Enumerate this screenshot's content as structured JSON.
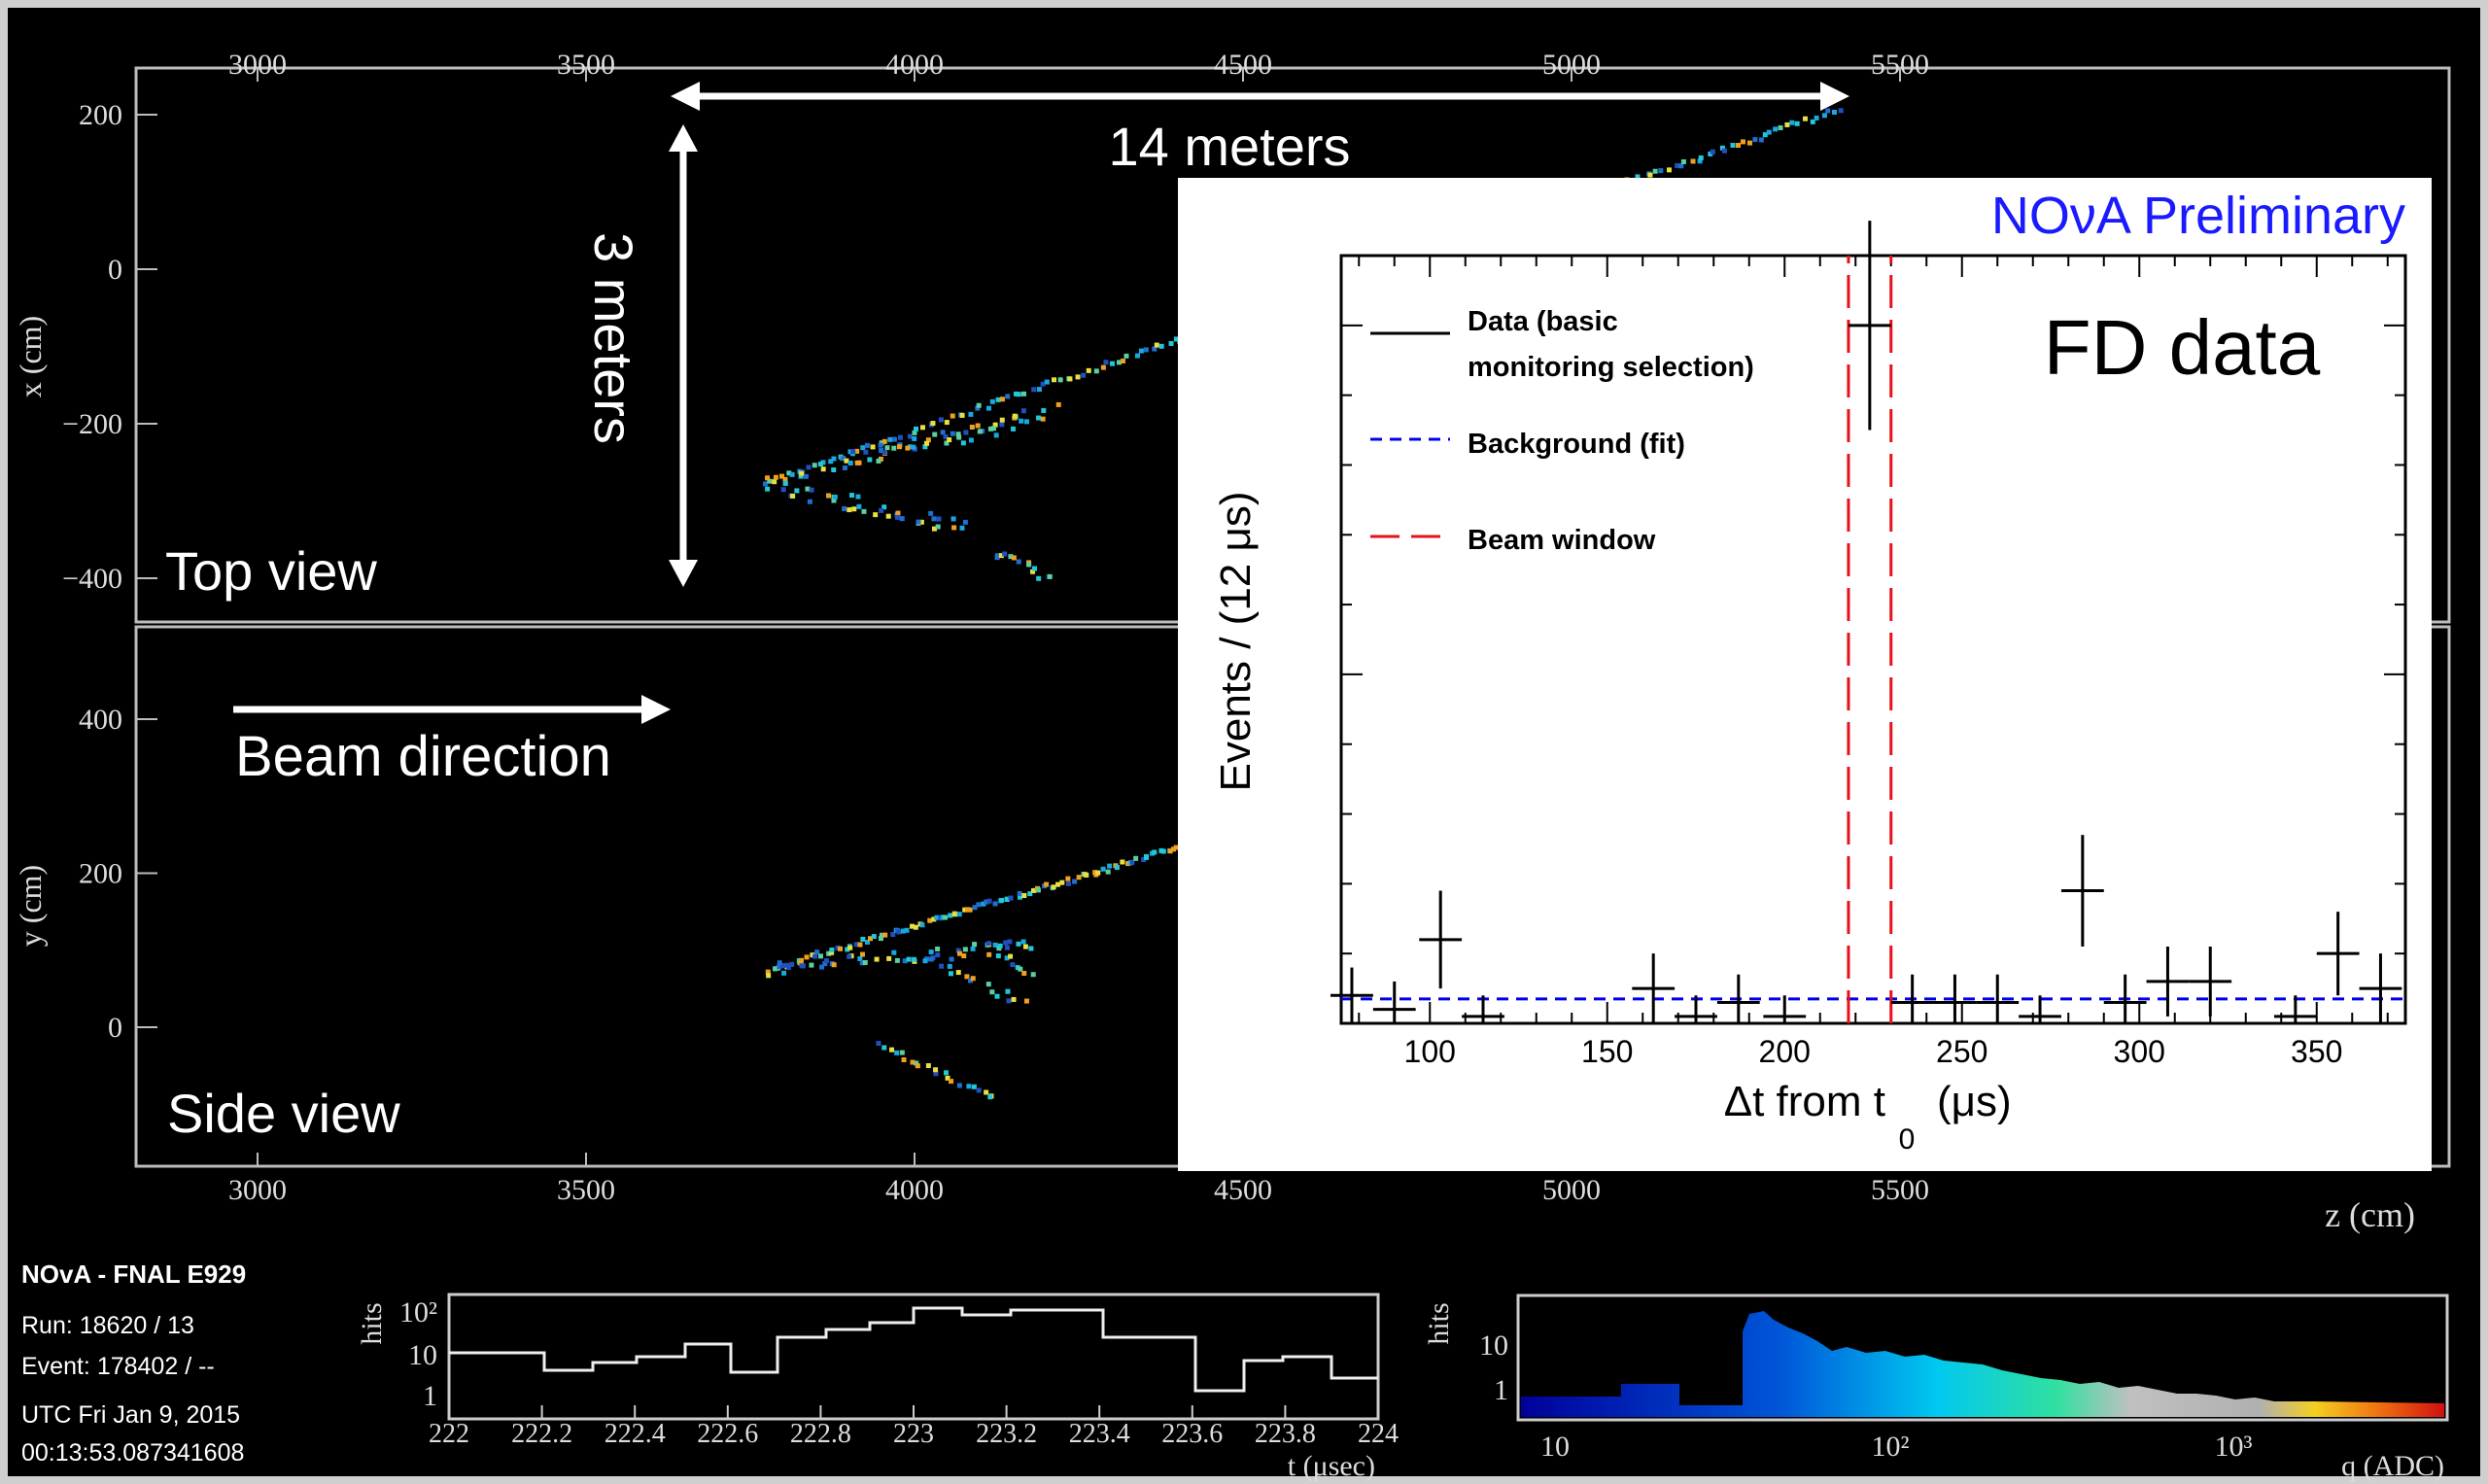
{
  "event_display": {
    "top_view": {
      "label": "Top view",
      "y_axis_label": "x (cm)",
      "y_ticks": [
        "200",
        "0",
        "−200",
        "−400"
      ],
      "y_tick_values": [
        200,
        0,
        -200,
        -400
      ]
    },
    "side_view": {
      "label": "Side view",
      "y_axis_label": "y (cm)",
      "y_ticks": [
        "400",
        "200",
        "0"
      ],
      "y_tick_values": [
        400,
        200,
        0
      ]
    },
    "z_ticks": [
      "3000",
      "3500",
      "4000",
      "4500",
      "5000",
      "5500"
    ],
    "z_tick_values": [
      3000,
      3500,
      4000,
      4500,
      5000,
      5500
    ],
    "z_axis_label": "z (cm)",
    "annotations": {
      "length": "14 meters",
      "height": "3 meters",
      "beam": "Beam direction"
    }
  },
  "info": {
    "experiment": "NOvA - FNAL E929",
    "run": "Run:  18620 / 13",
    "event": "Event: 178402 / --",
    "date": "UTC Fri Jan 9, 2015",
    "time": "00:13:53.087341608"
  },
  "time_hist": {
    "ylabel": "hits",
    "y_ticks": [
      "10²",
      "10",
      "1"
    ],
    "x_ticks": [
      "222",
      "222.2",
      "222.4",
      "222.6",
      "222.8",
      "223",
      "223.2",
      "223.4",
      "223.6",
      "223.8",
      "224"
    ],
    "xlabel": "t (μsec)"
  },
  "charge_hist": {
    "ylabel": "hits",
    "y_ticks": [
      "10",
      "1"
    ],
    "x_ticks": [
      "10",
      "10²",
      "10³"
    ],
    "xlabel": "q (ADC)"
  },
  "inset": {
    "banner": "NOνA Preliminary",
    "subtitle": "FD data",
    "ylabel": "Events / (12  μs)",
    "xlabel_main": "Δt from t",
    "xlabel_sub": "0",
    "xlabel_unit": "(μs)",
    "legend": {
      "data_line1": "Data (basic",
      "data_line2": "monitoring selection)",
      "background": "Background (fit)",
      "beam": "Beam window"
    },
    "colors": {
      "data": "#000000",
      "background": "#0000ee",
      "beam": "#e8101a",
      "banner": "#1a1aff"
    }
  },
  "chart_data": {
    "type": "scatter",
    "title": "NOνA Preliminary",
    "subtitle": "FD data",
    "xlabel": "Δt from t0 (μs)",
    "ylabel": "Events / (12  μs)",
    "xlim": [
      75,
      375
    ],
    "ylim": [
      0,
      110
    ],
    "x_ticks": [
      100,
      150,
      200,
      250,
      300,
      350
    ],
    "series": [
      {
        "name": "Data (basic monitoring selection)",
        "points": [
          {
            "x": 78,
            "y": 4,
            "err": 4
          },
          {
            "x": 90,
            "y": 2,
            "err": 4
          },
          {
            "x": 103,
            "y": 12,
            "err": 7
          },
          {
            "x": 115,
            "y": 1,
            "err": 3
          },
          {
            "x": 163,
            "y": 5,
            "err": 5
          },
          {
            "x": 175,
            "y": 1,
            "err": 3
          },
          {
            "x": 187,
            "y": 3,
            "err": 4
          },
          {
            "x": 200,
            "y": 1,
            "err": 3
          },
          {
            "x": 224,
            "y": 100,
            "err": 15
          },
          {
            "x": 236,
            "y": 3,
            "err": 4
          },
          {
            "x": 248,
            "y": 3,
            "err": 4
          },
          {
            "x": 260,
            "y": 3,
            "err": 4
          },
          {
            "x": 272,
            "y": 1,
            "err": 3
          },
          {
            "x": 284,
            "y": 19,
            "err": 8
          },
          {
            "x": 296,
            "y": 3,
            "err": 4
          },
          {
            "x": 308,
            "y": 6,
            "err": 5
          },
          {
            "x": 320,
            "y": 6,
            "err": 5
          },
          {
            "x": 344,
            "y": 1,
            "err": 3
          },
          {
            "x": 356,
            "y": 10,
            "err": 6
          },
          {
            "x": 368,
            "y": 5,
            "err": 5
          }
        ]
      },
      {
        "name": "Background (fit)",
        "type": "hline",
        "y": 3.5
      },
      {
        "name": "Beam window",
        "type": "vlines",
        "x": [
          218,
          230
        ]
      }
    ],
    "legend_position": "top-left",
    "grid": false
  }
}
